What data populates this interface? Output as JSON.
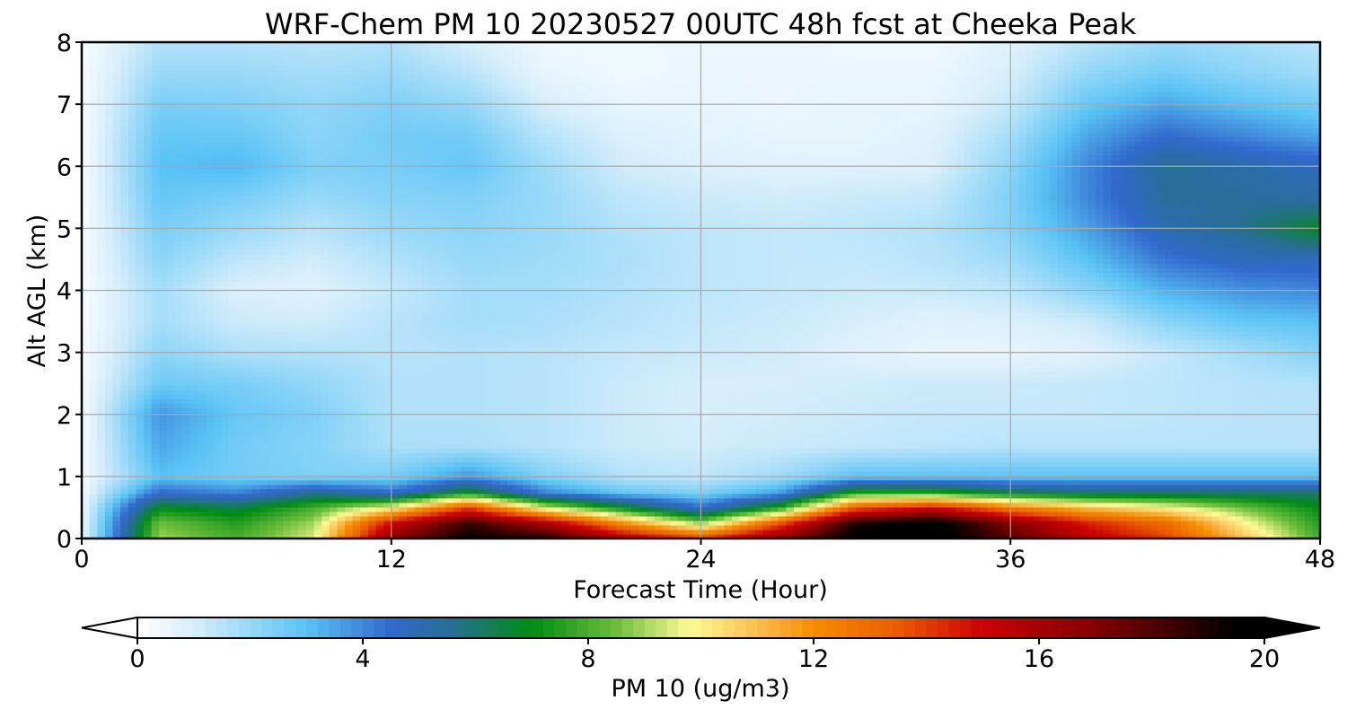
{
  "chart_data": {
    "type": "heatmap",
    "title": "WRF-Chem PM 10  20230527 00UTC 48h fcst at Cheeka Peak",
    "xlabel": "Forecast Time (Hour)",
    "ylabel": "Alt AGL (km)",
    "xlim": [
      0,
      48
    ],
    "ylim": [
      0,
      8
    ],
    "x_ticks": [
      "0",
      "12",
      "24",
      "36",
      "48"
    ],
    "y_ticks": [
      "0",
      "1",
      "2",
      "3",
      "4",
      "5",
      "6",
      "7",
      "8"
    ],
    "grid": true,
    "x": [
      0,
      3,
      6,
      9,
      12,
      15,
      18,
      21,
      24,
      27,
      30,
      33,
      36,
      39,
      42,
      45,
      48
    ],
    "y": [
      0,
      0.25,
      0.5,
      0.75,
      1,
      1.5,
      2,
      2.5,
      3,
      3.5,
      4,
      4.5,
      5,
      5.5,
      6,
      6.5,
      7,
      7.5,
      8
    ],
    "z": [
      [
        0.5,
        9.0,
        8.0,
        9.5,
        17,
        19.5,
        19,
        16,
        14,
        17,
        20,
        20,
        18,
        15.5,
        14,
        11,
        8
      ],
      [
        0.5,
        8.5,
        7.5,
        9.0,
        15,
        18.5,
        16,
        12,
        9,
        13.5,
        19,
        20,
        17,
        14.5,
        13,
        10,
        7.5
      ],
      [
        0.5,
        7.0,
        6.5,
        8.0,
        10,
        14,
        9.5,
        7,
        4.5,
        7.5,
        13.5,
        15,
        12.5,
        11,
        10,
        8.5,
        7
      ],
      [
        0.4,
        4.5,
        4.0,
        5.5,
        4.5,
        7,
        4.0,
        2.8,
        2.4,
        3.5,
        7.5,
        7.5,
        6.5,
        6,
        6,
        6,
        6
      ],
      [
        0.3,
        3.0,
        2.6,
        2.4,
        2.5,
        3.8,
        2.4,
        1.6,
        1.4,
        1.9,
        3.0,
        3.0,
        3.0,
        3,
        3,
        3,
        3
      ],
      [
        0.3,
        3.5,
        2.6,
        2.3,
        1.7,
        1.7,
        1.5,
        1.2,
        1.1,
        1.2,
        1.3,
        1.4,
        1.5,
        1.5,
        1.5,
        1.5,
        1.5
      ],
      [
        0.3,
        3.8,
        2.8,
        2.4,
        1.6,
        1.6,
        1.5,
        1.2,
        1.0,
        1.1,
        1.2,
        1.3,
        1.3,
        1.3,
        1.4,
        1.5,
        1.5
      ],
      [
        0.3,
        2.7,
        2.5,
        2.1,
        1.6,
        1.6,
        1.5,
        1.2,
        1.0,
        1.0,
        1.1,
        1.2,
        1.2,
        1.3,
        1.4,
        1.5,
        1.6
      ],
      [
        0.2,
        2.2,
        1.7,
        1.6,
        1.5,
        1.6,
        1.5,
        1.3,
        1.2,
        1.1,
        0.8,
        0.6,
        0.6,
        0.8,
        1.3,
        1.8,
        2.3
      ],
      [
        0.2,
        1.8,
        1.2,
        1.1,
        1.5,
        1.8,
        1.7,
        1.5,
        1.3,
        1.2,
        1.0,
        0.8,
        0.9,
        1.2,
        2.2,
        2.8,
        3.0
      ],
      [
        0.2,
        1.8,
        0.9,
        0.8,
        1.3,
        1.8,
        1.8,
        1.6,
        1.4,
        1.3,
        1.2,
        1.2,
        1.4,
        2.2,
        3.3,
        3.8,
        4.0
      ],
      [
        0.2,
        2.2,
        1.4,
        1.1,
        1.6,
        2.0,
        1.9,
        1.7,
        1.4,
        1.3,
        1.3,
        1.5,
        1.9,
        3.0,
        4.3,
        4.8,
        4.8
      ],
      [
        0.2,
        2.5,
        2.0,
        1.5,
        2.0,
        2.2,
        2.0,
        1.6,
        1.4,
        1.3,
        1.4,
        1.6,
        2.3,
        3.6,
        5.0,
        5.6,
        6.8
      ],
      [
        0.2,
        2.8,
        2.5,
        2.0,
        2.3,
        2.4,
        2.0,
        1.4,
        1.2,
        1.1,
        1.2,
        1.3,
        2.4,
        4.0,
        5.4,
        5.4,
        5.2
      ],
      [
        0.2,
        3.0,
        3.2,
        2.4,
        2.5,
        2.8,
        1.9,
        1.1,
        0.9,
        0.8,
        0.8,
        0.9,
        2.2,
        4.0,
        5.5,
        5.2,
        4.8
      ],
      [
        0.2,
        2.8,
        2.8,
        2.2,
        2.6,
        2.6,
        1.5,
        0.9,
        0.7,
        0.6,
        0.6,
        0.8,
        1.8,
        3.5,
        4.5,
        4.0,
        3.5
      ],
      [
        0.2,
        2.5,
        2.4,
        2.1,
        2.4,
        2.1,
        1.0,
        0.6,
        0.6,
        0.5,
        0.6,
        0.6,
        1.3,
        2.8,
        3.5,
        3.0,
        2.6
      ],
      [
        0.2,
        2.0,
        2.0,
        1.8,
        2.0,
        1.5,
        0.6,
        0.4,
        0.5,
        0.5,
        0.5,
        0.5,
        1.0,
        2.1,
        2.6,
        2.2,
        1.9
      ],
      [
        0.2,
        1.6,
        1.6,
        1.5,
        1.6,
        1.0,
        0.4,
        0.4,
        0.5,
        0.5,
        0.4,
        0.4,
        0.8,
        1.5,
        2.0,
        1.8,
        1.5
      ]
    ],
    "colorbar": {
      "label": "PM 10  (ug/m3)",
      "ticks": [
        "0",
        "4",
        "8",
        "12",
        "16",
        "20"
      ],
      "range": [
        0,
        20
      ],
      "extend": "both"
    }
  }
}
